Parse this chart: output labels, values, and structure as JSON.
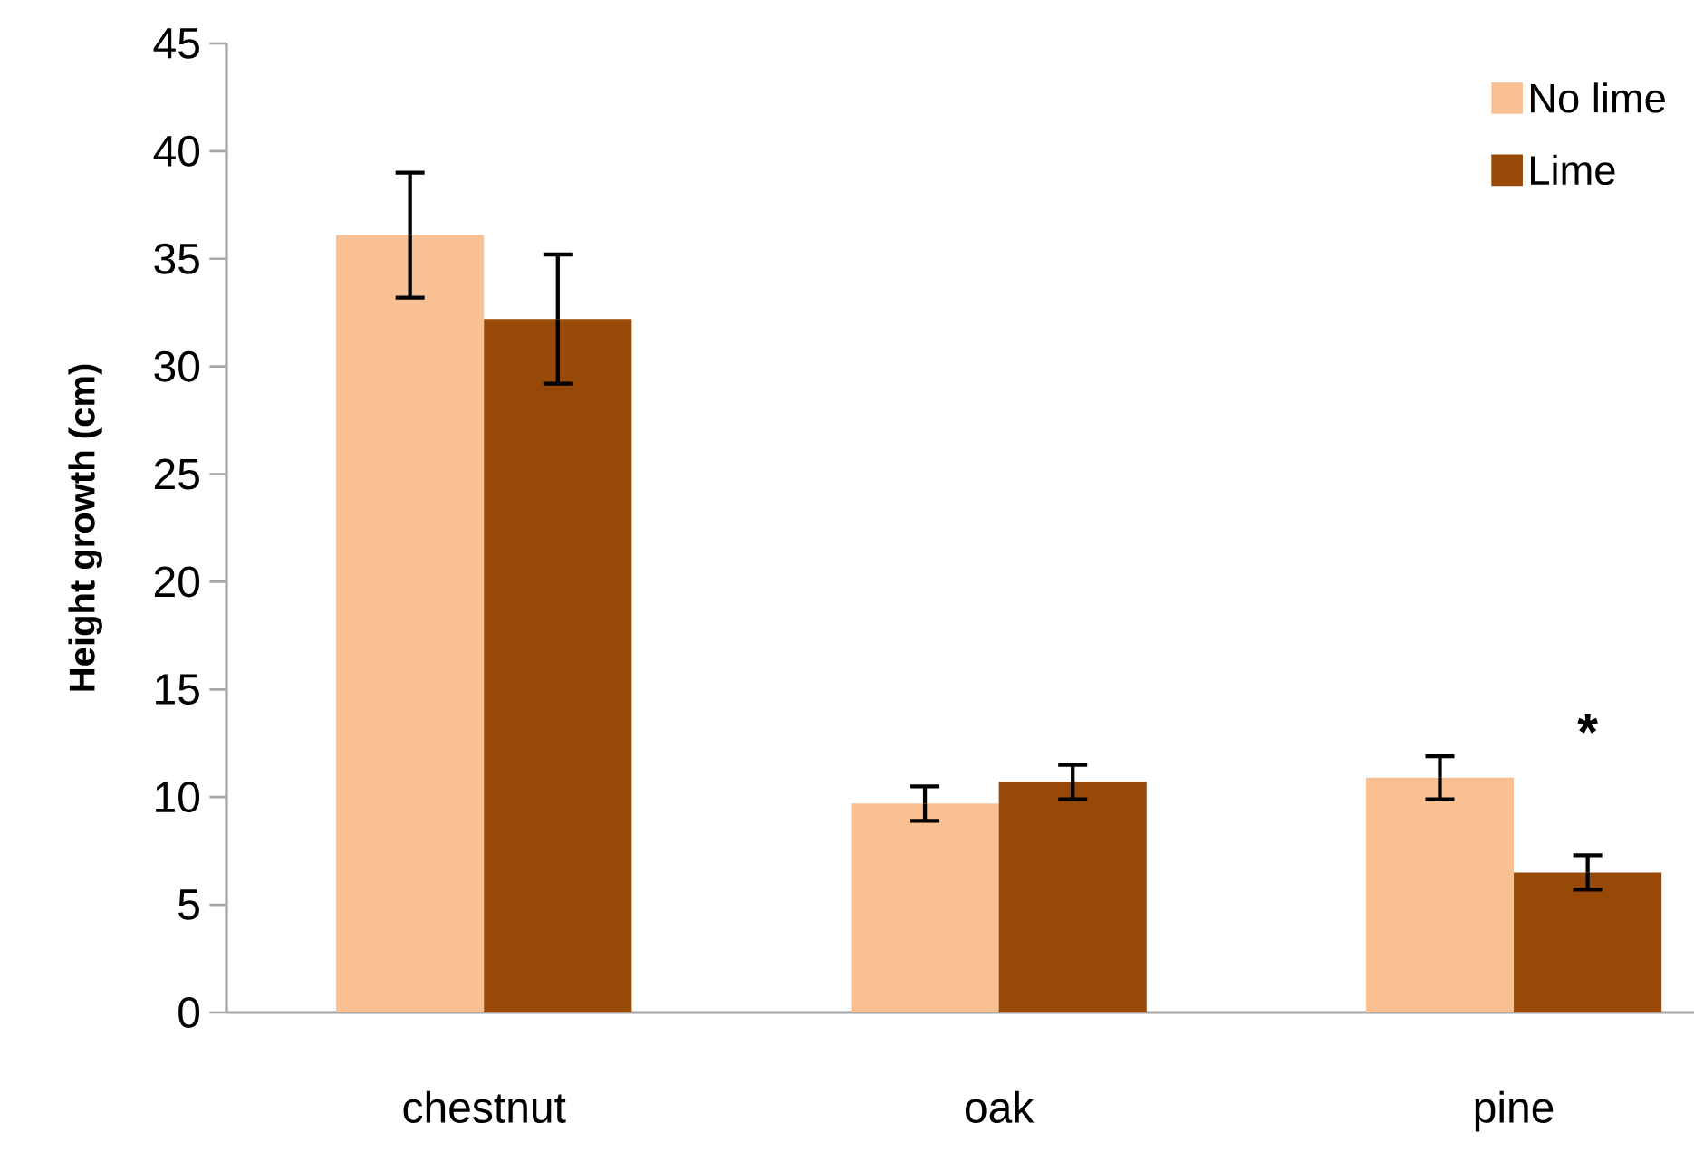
{
  "chart_data": {
    "type": "bar",
    "ylabel": "Height growth (cm)",
    "categories": [
      "chestnut",
      "oak",
      "pine"
    ],
    "series": [
      {
        "name": "No lime",
        "color": "#f9c193",
        "values": [
          36.1,
          9.7,
          10.9
        ],
        "errors": [
          2.9,
          0.8,
          1.0
        ]
      },
      {
        "name": "Lime",
        "color": "#984807",
        "values": [
          32.2,
          10.7,
          6.5
        ],
        "errors": [
          3.0,
          0.8,
          0.8
        ]
      }
    ],
    "ylim": [
      0,
      45
    ],
    "yticks": [
      0,
      5,
      10,
      15,
      20,
      25,
      30,
      35,
      40,
      45
    ],
    "legend": "top right",
    "grid": false,
    "annotations": [
      "*"
    ]
  }
}
